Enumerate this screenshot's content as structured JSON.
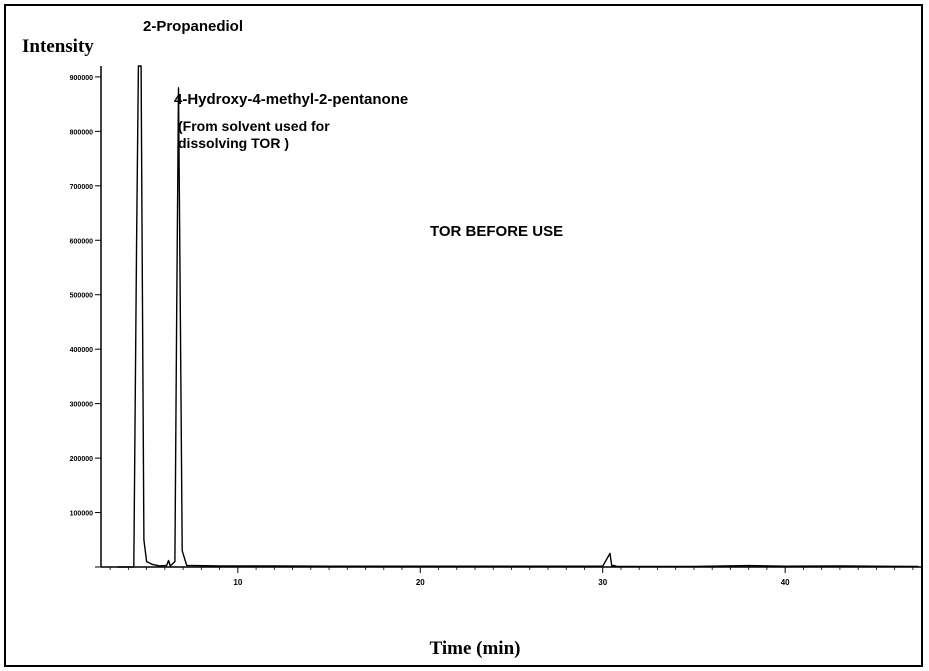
{
  "chart_data": {
    "type": "line",
    "title": "TOR BEFORE USE",
    "ylabel": "Intensity",
    "xlabel": "Time (min)",
    "xlim": [
      2.5,
      47.5
    ],
    "ylim": [
      0,
      920000
    ],
    "x_ticks": [
      10,
      20,
      30,
      40
    ],
    "x_tick_labels": [
      "10",
      "20",
      "30",
      "40"
    ],
    "y_ticks": [
      100000,
      200000,
      300000,
      400000,
      500000,
      600000,
      700000,
      800000,
      900000
    ],
    "y_tick_labels": [
      "100000",
      "200000",
      "300000",
      "400000",
      "500000",
      "600000",
      "700000",
      "800000",
      "900000"
    ],
    "grid": false,
    "series": [
      {
        "x": [
          3.4,
          4.3,
          4.45,
          4.55,
          4.7,
          4.75,
          4.85,
          5.0,
          5.3,
          5.7,
          6.1,
          6.2,
          6.3,
          6.55,
          6.65,
          6.75,
          6.85,
          6.95,
          7.2,
          9,
          12,
          15,
          20,
          25,
          30,
          30.4,
          30.5,
          30.6,
          30.8,
          35,
          38,
          40,
          43,
          47.3
        ],
        "y": [
          0,
          0,
          600000,
          920000,
          920000,
          600000,
          50000,
          10000,
          5000,
          2000,
          3000,
          12000,
          2000,
          10000,
          470000,
          880000,
          450000,
          30000,
          3000,
          2000,
          2000,
          1500,
          1500,
          1500,
          1500,
          25000,
          1500,
          3000,
          1000,
          1000,
          2500,
          1500,
          2000,
          1000
        ]
      }
    ],
    "annotations": [
      {
        "id": "p1",
        "text": "2-Propanediol",
        "x": 4.6,
        "y": 920000
      },
      {
        "id": "p2",
        "text": "4-Hydroxy-4-methyl-2-pentanone",
        "x": 6.75,
        "y": 880000
      },
      {
        "id": "p2note1",
        "text": "(From solvent used for"
      },
      {
        "id": "p2note2",
        "text": "dissolving TOR )"
      }
    ]
  },
  "colors": {
    "line": "#000000",
    "background": "#ffffff"
  }
}
